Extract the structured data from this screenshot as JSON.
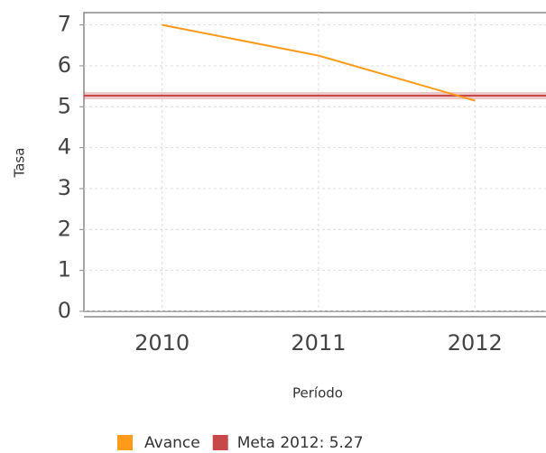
{
  "chart_data": {
    "type": "line",
    "categories": [
      "2010",
      "2011",
      "2012"
    ],
    "series": [
      {
        "name": "Avance",
        "color": "#ff9a1a",
        "values": [
          7.0,
          6.25,
          5.15
        ]
      }
    ],
    "target": {
      "name": "Meta 2012: 5.27",
      "value": 5.27,
      "color": "#c8484a"
    },
    "x_label": "Período",
    "y_label": "Tasa",
    "ylim": [
      0,
      7.3
    ],
    "yticks": [
      0,
      1,
      2,
      3,
      4,
      5,
      6,
      7
    ],
    "grid": true
  }
}
